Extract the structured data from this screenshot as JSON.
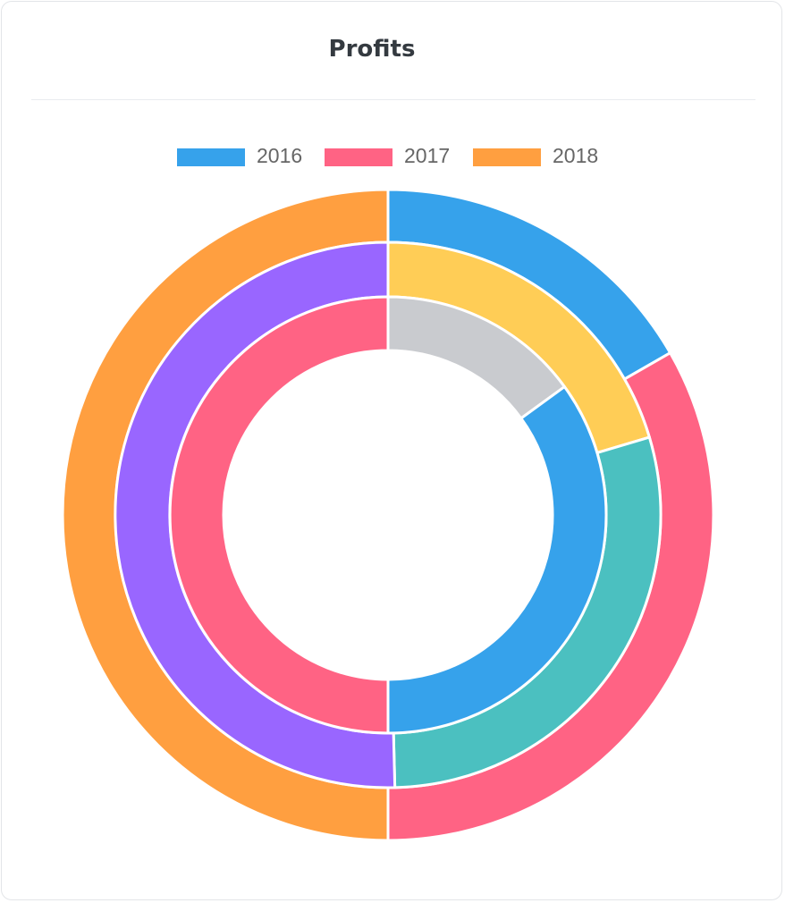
{
  "card": {
    "title": "Profits"
  },
  "chart_data": {
    "type": "doughnut",
    "title": "Profits",
    "legend_position": "top",
    "legend": [
      {
        "label": "2016",
        "color": "#36a2eb"
      },
      {
        "label": "2017",
        "color": "#ff6384"
      },
      {
        "label": "2018",
        "color": "#ff9f40"
      }
    ],
    "rings": [
      {
        "ring": "outer",
        "slices": [
          {
            "value": 16.7,
            "color": "#36a2eb"
          },
          {
            "value": 33.3,
            "color": "#ff6384"
          },
          {
            "value": 50.0,
            "color": "#ff9f40"
          }
        ]
      },
      {
        "ring": "middle",
        "slices": [
          {
            "value": 20.4,
            "color": "#ffcd56"
          },
          {
            "value": 29.2,
            "color": "#4bc0c0"
          },
          {
            "value": 50.4,
            "color": "#9966ff"
          }
        ]
      },
      {
        "ring": "inner",
        "slices": [
          {
            "value": 15.0,
            "color": "#c9cbcf"
          },
          {
            "value": 35.0,
            "color": "#36a2eb"
          },
          {
            "value": 50.0,
            "color": "#ff6384"
          }
        ]
      }
    ]
  }
}
